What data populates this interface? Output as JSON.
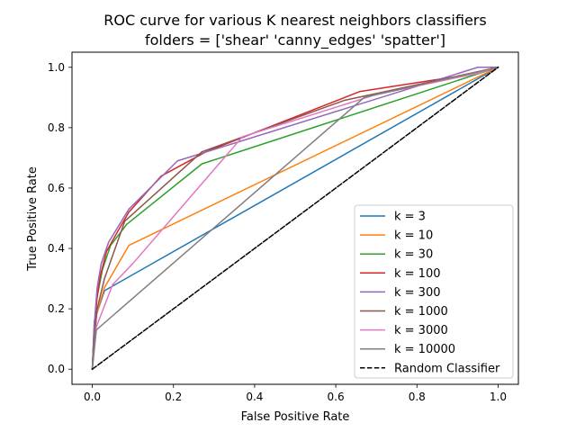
{
  "chart_data": {
    "type": "line",
    "title_line1": "ROC curve for various K nearest neighbors classifiers",
    "title_line2": "folders = ['shear' 'canny_edges' 'spatter']",
    "xlabel": "False Positive Rate",
    "ylabel": "True Positive Rate",
    "xlim": [
      -0.05,
      1.05
    ],
    "ylim": [
      -0.05,
      1.05
    ],
    "xticks": [
      0.0,
      0.2,
      0.4,
      0.6,
      0.8,
      1.0
    ],
    "xtick_labels": [
      "0.0",
      "0.2",
      "0.4",
      "0.6",
      "0.8",
      "1.0"
    ],
    "yticks": [
      0.0,
      0.2,
      0.4,
      0.6,
      0.8,
      1.0
    ],
    "ytick_labels": [
      "0.0",
      "0.2",
      "0.4",
      "0.6",
      "0.8",
      "1.0"
    ],
    "grid": false,
    "legend_position": "lower-right",
    "series": [
      {
        "name": "k = 3",
        "color": "#1f77b4",
        "dashed": false,
        "x": [
          0.0,
          0.005,
          0.03,
          1.0
        ],
        "y": [
          0.0,
          0.16,
          0.26,
          1.0
        ]
      },
      {
        "name": "k = 10",
        "color": "#ff7f0e",
        "dashed": false,
        "x": [
          0.0,
          0.01,
          0.03,
          0.09,
          1.0
        ],
        "y": [
          0.0,
          0.18,
          0.27,
          0.41,
          1.0
        ]
      },
      {
        "name": "k = 30",
        "color": "#2ca02c",
        "dashed": false,
        "x": [
          0.0,
          0.005,
          0.012,
          0.025,
          0.045,
          0.085,
          0.27,
          1.0
        ],
        "y": [
          0.0,
          0.14,
          0.24,
          0.33,
          0.41,
          0.48,
          0.68,
          1.0
        ]
      },
      {
        "name": "k = 100",
        "color": "#d62728",
        "dashed": false,
        "x": [
          0.0,
          0.005,
          0.012,
          0.02,
          0.035,
          0.06,
          0.09,
          0.17,
          0.28,
          0.66,
          0.9,
          1.0
        ],
        "y": [
          0.0,
          0.14,
          0.24,
          0.31,
          0.39,
          0.45,
          0.52,
          0.64,
          0.72,
          0.92,
          0.97,
          1.0
        ]
      },
      {
        "name": "k = 300",
        "color": "#9467bd",
        "dashed": false,
        "x": [
          0.0,
          0.005,
          0.012,
          0.022,
          0.04,
          0.09,
          0.21,
          0.95,
          1.0
        ],
        "y": [
          0.0,
          0.15,
          0.27,
          0.35,
          0.42,
          0.53,
          0.69,
          1.0,
          1.0
        ]
      },
      {
        "name": "k = 1000",
        "color": "#8c564b",
        "dashed": false,
        "x": [
          0.0,
          0.005,
          0.012,
          0.03,
          0.08,
          0.27,
          0.62,
          1.0
        ],
        "y": [
          0.0,
          0.1,
          0.2,
          0.3,
          0.49,
          0.72,
          0.89,
          1.0
        ]
      },
      {
        "name": "k = 3000",
        "color": "#e377c2",
        "dashed": false,
        "x": [
          0.0,
          0.01,
          0.05,
          0.1,
          0.37,
          0.7,
          0.95,
          1.0
        ],
        "y": [
          0.0,
          0.14,
          0.28,
          0.35,
          0.77,
          0.91,
          0.98,
          1.0
        ]
      },
      {
        "name": "k = 10000",
        "color": "#7f7f7f",
        "dashed": false,
        "x": [
          0.0,
          0.01,
          0.67,
          1.0
        ],
        "y": [
          0.0,
          0.13,
          0.9,
          1.0
        ]
      },
      {
        "name": "Random Classifier",
        "color": "#000000",
        "dashed": true,
        "x": [
          0.0,
          1.0
        ],
        "y": [
          0.0,
          1.0
        ]
      }
    ]
  }
}
